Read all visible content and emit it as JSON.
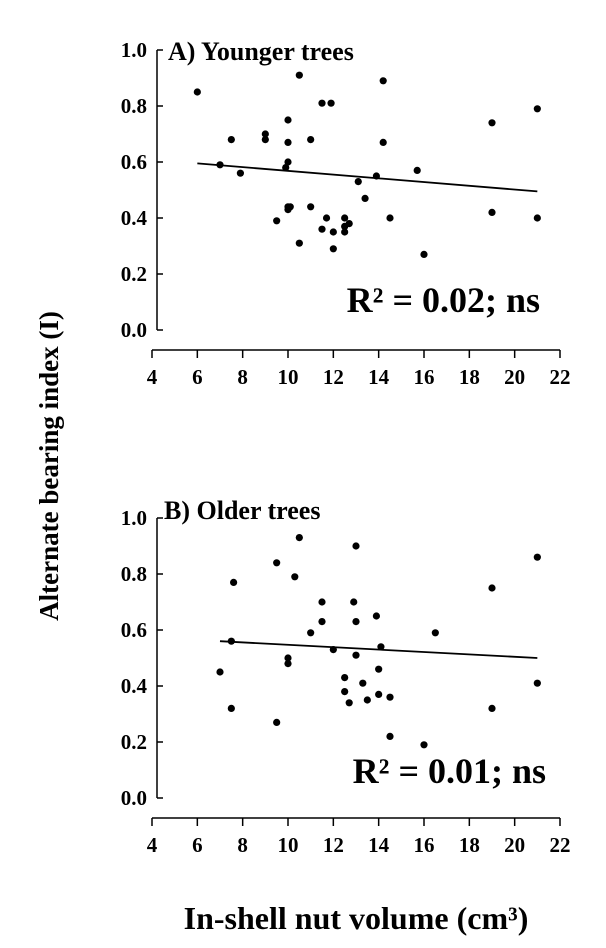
{
  "chart_data": {
    "shared_ylabel": "Alternate bearing index (I)",
    "shared_xlabel": "In-shell nut volume (cm³)",
    "panels": [
      {
        "type": "scatter",
        "title": "A)  Younger trees",
        "stat_label": "R² = 0.02; ns",
        "xlim": [
          4,
          22
        ],
        "ylim": [
          0.0,
          1.0
        ],
        "x_ticks": [
          "4",
          "6",
          "8",
          "10",
          "12",
          "14",
          "16",
          "18",
          "20",
          "22"
        ],
        "y_ticks": [
          "0.0",
          "0.2",
          "0.4",
          "0.6",
          "0.8",
          "1.0"
        ],
        "points": [
          [
            6.0,
            0.85
          ],
          [
            7.0,
            0.59
          ],
          [
            7.5,
            0.68
          ],
          [
            7.9,
            0.56
          ],
          [
            9.0,
            0.7
          ],
          [
            9.0,
            0.68
          ],
          [
            9.5,
            0.39
          ],
          [
            9.9,
            0.58
          ],
          [
            10.0,
            0.44
          ],
          [
            10.0,
            0.43
          ],
          [
            10.1,
            0.44
          ],
          [
            10.0,
            0.6
          ],
          [
            10.0,
            0.67
          ],
          [
            10.0,
            0.75
          ],
          [
            10.5,
            0.91
          ],
          [
            10.5,
            0.31
          ],
          [
            11.0,
            0.68
          ],
          [
            11.0,
            0.44
          ],
          [
            11.5,
            0.81
          ],
          [
            11.5,
            0.36
          ],
          [
            11.7,
            0.4
          ],
          [
            11.9,
            0.81
          ],
          [
            12.0,
            0.35
          ],
          [
            12.0,
            0.29
          ],
          [
            12.5,
            0.35
          ],
          [
            12.5,
            0.37
          ],
          [
            12.5,
            0.4
          ],
          [
            12.7,
            0.38
          ],
          [
            13.1,
            0.53
          ],
          [
            13.4,
            0.47
          ],
          [
            13.9,
            0.55
          ],
          [
            14.2,
            0.67
          ],
          [
            14.2,
            0.89
          ],
          [
            14.5,
            0.4
          ],
          [
            15.7,
            0.57
          ],
          [
            16.0,
            0.27
          ],
          [
            19.0,
            0.74
          ],
          [
            19.0,
            0.42
          ],
          [
            21.0,
            0.79
          ],
          [
            21.0,
            0.4
          ]
        ],
        "fit_line": [
          [
            6,
            0.595
          ],
          [
            21,
            0.495
          ]
        ]
      },
      {
        "type": "scatter",
        "title": "B)  Older trees",
        "stat_label": "R² = 0.01; ns",
        "xlim": [
          4,
          22
        ],
        "ylim": [
          0.0,
          1.0
        ],
        "x_ticks": [
          "4",
          "6",
          "8",
          "10",
          "12",
          "14",
          "16",
          "18",
          "20",
          "22"
        ],
        "y_ticks": [
          "0.0",
          "0.2",
          "0.4",
          "0.6",
          "0.8",
          "1.0"
        ],
        "points": [
          [
            7.0,
            0.45
          ],
          [
            7.5,
            0.56
          ],
          [
            7.6,
            0.77
          ],
          [
            7.5,
            0.32
          ],
          [
            9.5,
            0.84
          ],
          [
            9.5,
            0.27
          ],
          [
            10.0,
            0.5
          ],
          [
            10.0,
            0.48
          ],
          [
            10.3,
            0.79
          ],
          [
            10.5,
            0.93
          ],
          [
            11.0,
            0.59
          ],
          [
            11.5,
            0.7
          ],
          [
            11.5,
            0.63
          ],
          [
            12.0,
            0.53
          ],
          [
            12.5,
            0.43
          ],
          [
            12.5,
            0.38
          ],
          [
            12.7,
            0.34
          ],
          [
            12.9,
            0.7
          ],
          [
            13.0,
            0.9
          ],
          [
            13.0,
            0.63
          ],
          [
            13.0,
            0.51
          ],
          [
            13.3,
            0.41
          ],
          [
            13.5,
            0.35
          ],
          [
            13.9,
            0.65
          ],
          [
            14.0,
            0.37
          ],
          [
            14.0,
            0.46
          ],
          [
            14.1,
            0.54
          ],
          [
            14.5,
            0.36
          ],
          [
            14.5,
            0.22
          ],
          [
            16.0,
            0.19
          ],
          [
            16.5,
            0.59
          ],
          [
            19.0,
            0.75
          ],
          [
            19.0,
            0.32
          ],
          [
            21.0,
            0.86
          ],
          [
            21.0,
            0.41
          ]
        ],
        "fit_line": [
          [
            7,
            0.56
          ],
          [
            21,
            0.5
          ]
        ]
      }
    ]
  }
}
